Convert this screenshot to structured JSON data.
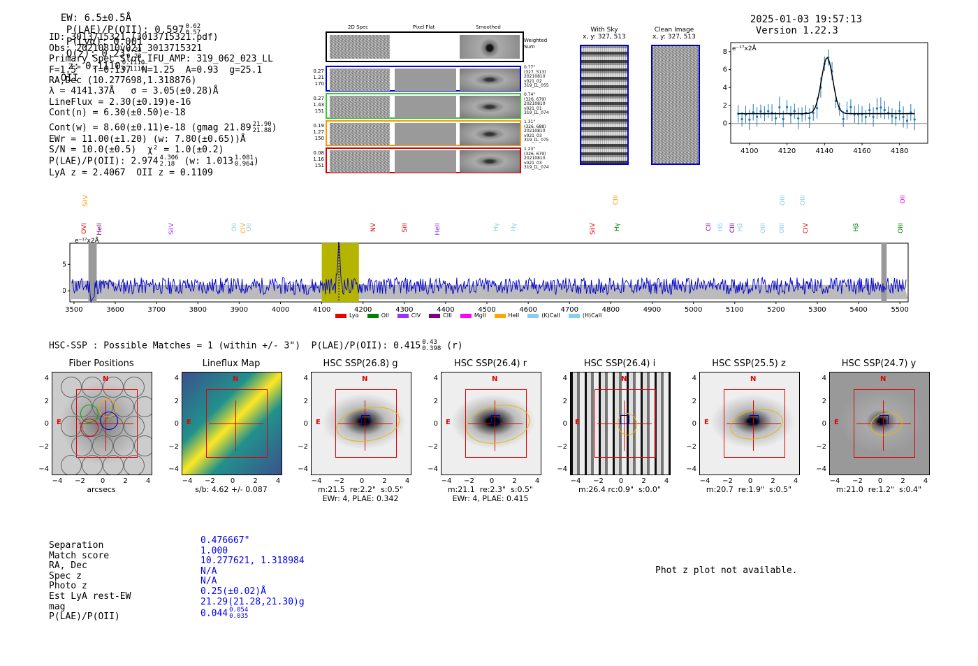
{
  "header": {
    "ew": "EW: 6.5±0.5Å",
    "plae_label": "P(LAE)/P(OII): 0.597",
    "plae_hi": "0.62",
    "plae_lo": "0.57",
    "plya": "P(Lyα): 0.001",
    "qz_label": "Q(z): 0.23",
    "qz_hi": "0.23",
    "qz_lo": "0.23",
    "z_label": "z: 0.1110",
    "z_hi": "0.1110",
    "z_lo": "0.1110",
    "z_line": "OII",
    "timestamp": "2025-01-03 19:57:13",
    "version": "Version 1.22.3"
  },
  "info": {
    "id": "ID: 3013715321 (3013715321.pdf)",
    "obs": "Obs: 20210810v021_3013715321",
    "primary": "Primary Spec_Slot_IFU_AMP: 319_062_023_LL",
    "fit": "F=1.5\"  T=0.137  N=1.25  A=0.93  g=25.1",
    "radec": "RA,Dec (10.277698,1.318876)",
    "lambda": "λ = 4141.37Å   σ = 3.05(±0.28)Å",
    "lineflux": "LineFlux = 2.30(±0.19)e-16",
    "contn": "Cont(n) = 6.30(±0.50)e-18",
    "contw_label": "Cont(w) = 8.60(±0.11)e-18 (gmag 21.89",
    "contw_hi": "21.90",
    "contw_lo": "21.88",
    "ewr": "EWr = 11.00(±1.20) (w: 7.80(±0.65))Å",
    "sn": "S/N = 10.0(±0.5)  χ² = 1.0(±0.2)",
    "plae_label": "P(LAE)/P(OII): 2.974",
    "plae_hi": "4.306",
    "plae_lo": "2.18",
    "plae_w_label": "(w: 1.013",
    "plae_w_hi": "1.081",
    "plae_w_lo": "0.964",
    "lya": "LyA z = 2.4067  OII z = 0.1109"
  },
  "cutouts": {
    "col_2d": "2D Spec",
    "col_flat": "Pixel Flat",
    "col_smooth": "Smoothed",
    "weighted": "Weighted\nSum",
    "rows": [
      {
        "nums": [
          "0.27",
          "1.21",
          "170"
        ],
        "meta": [
          "0.77\"",
          "(327, 513)",
          "20210810",
          "v021_02",
          "319_LL_055"
        ],
        "color": "#0000cc"
      },
      {
        "nums": [
          "0.27",
          "1.43",
          "151"
        ],
        "meta": [
          "0.74\"",
          "(326, 679)",
          "20210810",
          "v021_01",
          "319_LL_074"
        ],
        "color": "#33cc33"
      },
      {
        "nums": [
          "0.19",
          "1.27",
          "150"
        ],
        "meta": [
          "1.31\"",
          "(326, 688)",
          "20210810",
          "v021_03",
          "319_LL_075"
        ],
        "color": "#ff9900"
      },
      {
        "nums": [
          "0.08",
          "1.16",
          "151"
        ],
        "meta": [
          "1.23\"",
          "(326, 679)",
          "20210810",
          "v021_03",
          "319_LL_074"
        ],
        "color": "#dd0000"
      }
    ],
    "with_sky": "With Sky",
    "with_sky_xy": "x, y: 327, 513",
    "clean": "Clean Image",
    "clean_xy": "x, y: 327, 513"
  },
  "zoom_chart": {
    "ylabel": "e⁻¹⁷x2Å",
    "xticks": [
      "4100",
      "4120",
      "4140",
      "4160",
      "4180"
    ],
    "yticks": [
      "0",
      "2",
      "4",
      "6",
      "8"
    ]
  },
  "spectrum": {
    "ylabel": "e⁻¹⁷x2Å",
    "xticks": [
      "3500",
      "3600",
      "3700",
      "3800",
      "3900",
      "4000",
      "4100",
      "4200",
      "4300",
      "4400",
      "4500",
      "4600",
      "4700",
      "4800",
      "4900",
      "5000",
      "5100",
      "5200",
      "5300",
      "5400",
      "5500"
    ],
    "yticks": [
      "5",
      "0"
    ],
    "lines": [
      {
        "name": "SiIV",
        "color": "#ff9900",
        "row": 0
      },
      {
        "name": "OVI",
        "color": "#dd0000",
        "row": 1
      },
      {
        "name": "HeII",
        "color": "#800080",
        "row": 1
      },
      {
        "name": "SiIV",
        "color": "#9933ff",
        "row": 1
      },
      {
        "name": "OII",
        "color": "#87ceeb",
        "row": 1
      },
      {
        "name": "CIV",
        "color": "#ff9900",
        "row": 1
      },
      {
        "name": "OII",
        "color": "#87ceeb",
        "row": 1
      },
      {
        "name": "NV",
        "color": "#dd0000",
        "row": 1
      },
      {
        "name": "SiII",
        "color": "#dd0000",
        "row": 1
      },
      {
        "name": "HeII",
        "color": "#9933ff",
        "row": 1
      },
      {
        "name": "Hγ",
        "color": "#87ceeb",
        "row": 1
      },
      {
        "name": "Hγ",
        "color": "#87ceeb",
        "row": 1
      },
      {
        "name": "SiIV",
        "color": "#dd0000",
        "row": 1
      },
      {
        "name": "CIII",
        "color": "#ff9900",
        "row": 0
      },
      {
        "name": "Hγ",
        "color": "#008000",
        "row": 1
      },
      {
        "name": "CII",
        "color": "#800080",
        "row": 1
      },
      {
        "name": "Hδ",
        "color": "#87ceeb",
        "row": 1
      },
      {
        "name": "CIII",
        "color": "#800080",
        "row": 1
      },
      {
        "name": "Hβ",
        "color": "#87ceeb",
        "row": 1
      },
      {
        "name": "OIII",
        "color": "#87ceeb",
        "row": 1
      },
      {
        "name": "OIII",
        "color": "#87ceeb",
        "row": 1
      },
      {
        "name": "OIII",
        "color": "#87ceeb",
        "row": 0
      },
      {
        "name": "OIII",
        "color": "#87ceeb",
        "row": 0
      },
      {
        "name": "CIV",
        "color": "#dd0000",
        "row": 1
      },
      {
        "name": "Hβ",
        "color": "#008000",
        "row": 1
      },
      {
        "name": "OII",
        "color": "#ee00ee",
        "row": 0
      },
      {
        "name": "OIII",
        "color": "#008000",
        "row": 1
      }
    ],
    "legend": [
      {
        "label": "Lyα",
        "color": "#ee0000"
      },
      {
        "label": "OII",
        "color": "#008000"
      },
      {
        "label": "CIV",
        "color": "#9933ff"
      },
      {
        "label": "CIII",
        "color": "#800080"
      },
      {
        "label": "MgII",
        "color": "#ff00ff"
      },
      {
        "label": "HeII",
        "color": "#ffa500"
      },
      {
        "label": "(K)CaII",
        "color": "#87ceeb"
      },
      {
        "label": "(H)CaII",
        "color": "#87ceeb"
      }
    ]
  },
  "hsc": {
    "title_label": "HSC-SSP : Possible Matches = 1 (within +/- 3\")  P(LAE)/P(OII): 0.415",
    "title_hi": "0.43",
    "title_lo": "0.398",
    "title_band": "(r)",
    "panels": [
      {
        "title": "Fiber Positions",
        "cap1": "arcsecs",
        "cap2": ""
      },
      {
        "title": "Lineflux Map",
        "cap1": "s/b: 4.62 +/- 0.087",
        "cap2": ""
      },
      {
        "title": "HSC SSP(26.8) g",
        "cap1": "m:21.5  re:2.2\"  s:0.5\"",
        "cap2": "EWr: 4, PLAE: 0.342"
      },
      {
        "title": "HSC SSP(26.4) r",
        "cap1": "m:21.1  re:2.3\"  s:0.5\"",
        "cap2": "EWr: 4, PLAE: 0.415"
      },
      {
        "title": "HSC SSP(26.4) i",
        "cap1": "m:26.4 rc:0.9\"  s:0.0\"",
        "cap2": ""
      },
      {
        "title": "HSC SSP(25.5) z",
        "cap1": "m:20.7  re:1.9\"  s:0.5\"",
        "cap2": ""
      },
      {
        "title": "HSC SSP(24.7) y",
        "cap1": "m:21.0  re:1.2\"  s:0.4\"",
        "cap2": ""
      }
    ],
    "axis_ticks": [
      "−4",
      "−2",
      "0",
      "2",
      "4"
    ],
    "north": "N",
    "east": "E"
  },
  "match": {
    "labels": [
      "Separation",
      "Match score",
      "RA, Dec",
      "Spec z",
      "Photo z",
      "Est LyA rest-EW",
      "mag",
      "P(LAE)/P(OII)"
    ],
    "values": [
      "0.476667\"",
      "1.000",
      "10.277621, 1.318984",
      "N/A",
      "N/A",
      "0.25(±0.02)Å",
      "21.29(21.28,21.30)g",
      "0.044"
    ],
    "plae_hi": "0.054",
    "plae_lo": "0.035",
    "photz_msg": "Phot z plot not available."
  }
}
